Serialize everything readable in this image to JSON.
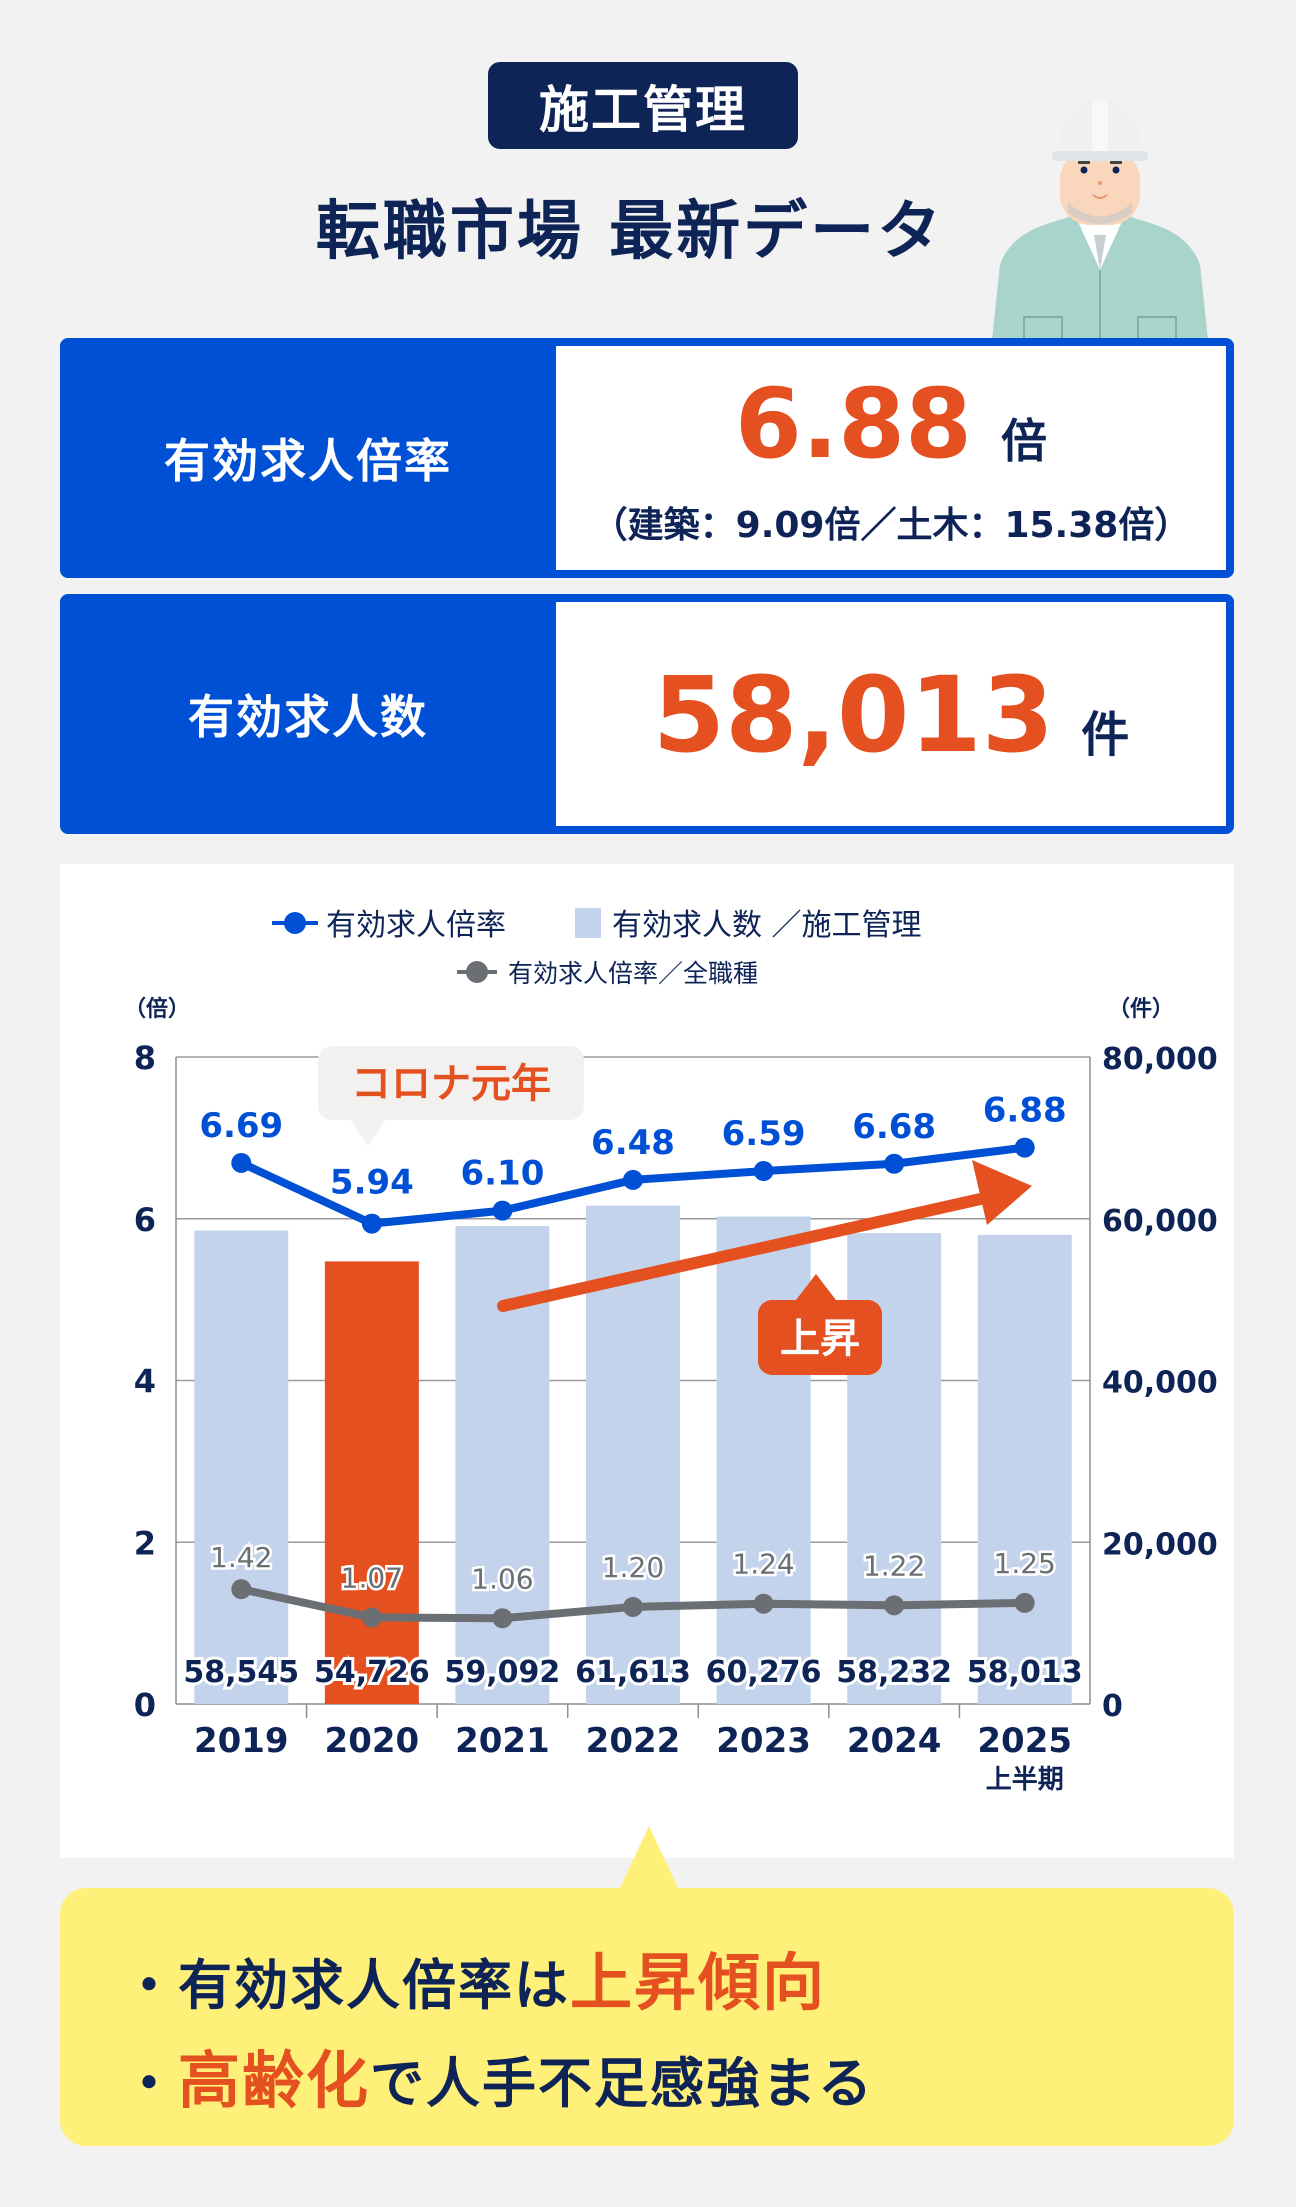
{
  "header": {
    "badge": "施工管理",
    "title": "転職市場 最新データ"
  },
  "stats": {
    "ratio": {
      "label": "有効求人倍率",
      "value": "6.88",
      "unit": "倍",
      "breakdown": "（建築：9.09倍／土木：15.38倍）"
    },
    "openings": {
      "label": "有効求人数",
      "value": "58,013",
      "unit": "件"
    }
  },
  "callouts": {
    "covid": "コロナ元年",
    "rise": "上昇"
  },
  "summary": {
    "line1_prefix": "・有効求人倍率は",
    "line1_highlight": "上昇傾向",
    "line2_bullet": "・",
    "line2_highlight": "高齢化",
    "line2_suffix": "で人手不足感強まる"
  },
  "colors": {
    "blue": "#0050d6",
    "navy": "#0e2456",
    "orange": "#e4501f",
    "bar": "#c3d3ec",
    "gray": "#6b6f73",
    "yellow": "#fff07a"
  },
  "chart_data": {
    "type": "bar",
    "title": "",
    "legend": [
      "有効求人倍率",
      "有効求人数 ／施工管理",
      "有効求人倍率／全職種"
    ],
    "categories": [
      "2019",
      "2020",
      "2021",
      "2022",
      "2023",
      "2024",
      "2025 上半期"
    ],
    "series": [
      {
        "name": "有効求人数 ／施工管理",
        "type": "bar",
        "axis": "right",
        "values": [
          58545,
          54726,
          59092,
          61613,
          60276,
          58232,
          58013
        ],
        "labels": [
          "58,545",
          "54,726",
          "59,092",
          "61,613",
          "60,276",
          "58,232",
          "58,013"
        ]
      },
      {
        "name": "有効求人倍率",
        "type": "line",
        "axis": "left",
        "values": [
          6.69,
          5.94,
          6.1,
          6.48,
          6.59,
          6.68,
          6.88
        ],
        "labels": [
          "6.69",
          "5.94",
          "6.10",
          "6.48",
          "6.59",
          "6.68",
          "6.88"
        ]
      },
      {
        "name": "有効求人倍率／全職種",
        "type": "line",
        "axis": "left",
        "values": [
          1.42,
          1.07,
          1.06,
          1.2,
          1.24,
          1.22,
          1.25
        ],
        "labels": [
          "1.42",
          "1.07",
          "1.06",
          "1.20",
          "1.24",
          "1.22",
          "1.25"
        ]
      }
    ],
    "ylabel_left": "（倍）",
    "ylabel_right": "（件）",
    "ylim_left": [
      0,
      8
    ],
    "ylim_right": [
      0,
      80000
    ],
    "yticks_left": [
      "0",
      "2",
      "4",
      "6",
      "8"
    ],
    "yticks_right": [
      "0",
      "20,000",
      "40,000",
      "60,000",
      "80,000"
    ],
    "highlight_category": "2020",
    "annotations": [
      "コロナ元年",
      "上昇"
    ],
    "grid": true,
    "legend_position": "top"
  }
}
